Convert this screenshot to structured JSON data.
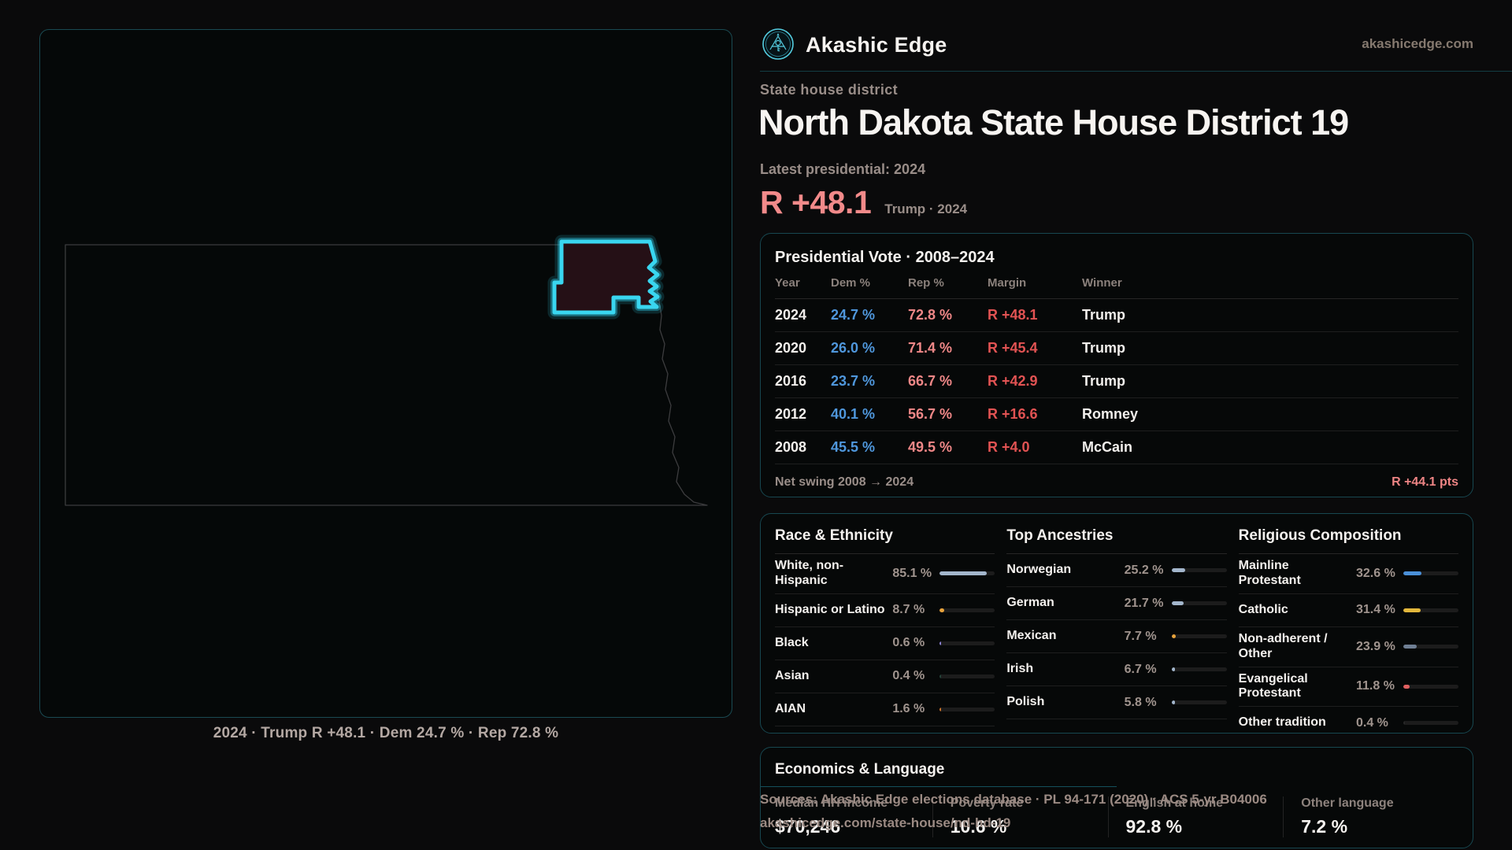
{
  "brand": {
    "name": "Akashic Edge",
    "url": "akashicedge.com"
  },
  "page": {
    "kicker": "State house district",
    "title": "North Dakota State House District 19",
    "latest_label": "Latest presidential: 2024",
    "margin_value": "R +48.1",
    "margin_sub": "Trump · 2024"
  },
  "map": {
    "caption": "2024 · Trump R +48.1 · Dem 24.7 % · Rep 72.8 %",
    "district_color": "#39d6f0"
  },
  "presidential": {
    "title": "Presidential Vote · 2008–2024",
    "columns": [
      "Year",
      "Dem %",
      "Rep %",
      "Margin",
      "Winner"
    ],
    "rows": [
      {
        "year": "2024",
        "dem": "24.7 %",
        "rep": "72.8 %",
        "margin": "R +48.1",
        "winner": "Trump"
      },
      {
        "year": "2020",
        "dem": "26.0 %",
        "rep": "71.4 %",
        "margin": "R +45.4",
        "winner": "Trump"
      },
      {
        "year": "2016",
        "dem": "23.7 %",
        "rep": "66.7 %",
        "margin": "R +42.9",
        "winner": "Trump"
      },
      {
        "year": "2012",
        "dem": "40.1 %",
        "rep": "56.7 %",
        "margin": "R +16.6",
        "winner": "Romney"
      },
      {
        "year": "2008",
        "dem": "45.5 %",
        "rep": "49.5 %",
        "margin": "R +4.0",
        "winner": "McCain"
      }
    ],
    "net_swing_label": "Net swing 2008 → 2024",
    "net_swing_value": "R +44.1 pts"
  },
  "panels": [
    {
      "id": "race",
      "title": "Race & Ethnicity",
      "rows": [
        {
          "label": "White, non-Hispanic",
          "value": "85.1 %",
          "pct": 85.1,
          "color": "#a3b6cc"
        },
        {
          "label": "Hispanic or Latino",
          "value": "8.7 %",
          "pct": 8.7,
          "color": "#e8a33c"
        },
        {
          "label": "Black",
          "value": "0.6 %",
          "pct": 0.6,
          "color": "#8d83d6"
        },
        {
          "label": "Asian",
          "value": "0.4 %",
          "pct": 0.4,
          "color": "#3dbd92"
        },
        {
          "label": "AIAN",
          "value": "1.6 %",
          "pct": 1.6,
          "color": "#d0772c"
        }
      ]
    },
    {
      "id": "ancestries",
      "title": "Top Ancestries",
      "rows": [
        {
          "label": "Norwegian",
          "value": "25.2 %",
          "pct": 25.2,
          "color": "#a3b6cc"
        },
        {
          "label": "German",
          "value": "21.7 %",
          "pct": 21.7,
          "color": "#a3b6cc"
        },
        {
          "label": "Mexican",
          "value": "7.7 %",
          "pct": 7.7,
          "color": "#e8a33c"
        },
        {
          "label": "Irish",
          "value": "6.7 %",
          "pct": 6.7,
          "color": "#a3b6cc"
        },
        {
          "label": "Polish",
          "value": "5.8 %",
          "pct": 5.8,
          "color": "#a3b6cc"
        }
      ]
    },
    {
      "id": "religion",
      "title": "Religious Composition",
      "rows": [
        {
          "label": "Mainline Protestant",
          "value": "32.6 %",
          "pct": 32.6,
          "color": "#4a90d9"
        },
        {
          "label": "Catholic",
          "value": "31.4 %",
          "pct": 31.4,
          "color": "#e3b83c"
        },
        {
          "label": "Non-adherent / Other",
          "value": "23.9 %",
          "pct": 23.9,
          "color": "#6f7f94"
        },
        {
          "label": "Evangelical Protestant",
          "value": "11.8 %",
          "pct": 11.8,
          "color": "#e06060"
        },
        {
          "label": "Other tradition",
          "value": "0.4 %",
          "pct": 0.4,
          "color": "#4a4a4a"
        }
      ]
    }
  ],
  "economics": {
    "title": "Economics & Language",
    "stats": [
      {
        "label": "Median HH income",
        "value": "$70,246"
      },
      {
        "label": "Poverty rate",
        "value": "10.6 %"
      },
      {
        "label": "English at home",
        "value": "92.8 %"
      },
      {
        "label": "Other language",
        "value": "7.2 %"
      }
    ]
  },
  "footer": {
    "sources_line1": "Sources: Akashic Edge elections database · PL 94-171 (2020) · ACS 5-yr B04006",
    "sources_line2": "akashicedge.com/state-house/nd-hd-19"
  }
}
